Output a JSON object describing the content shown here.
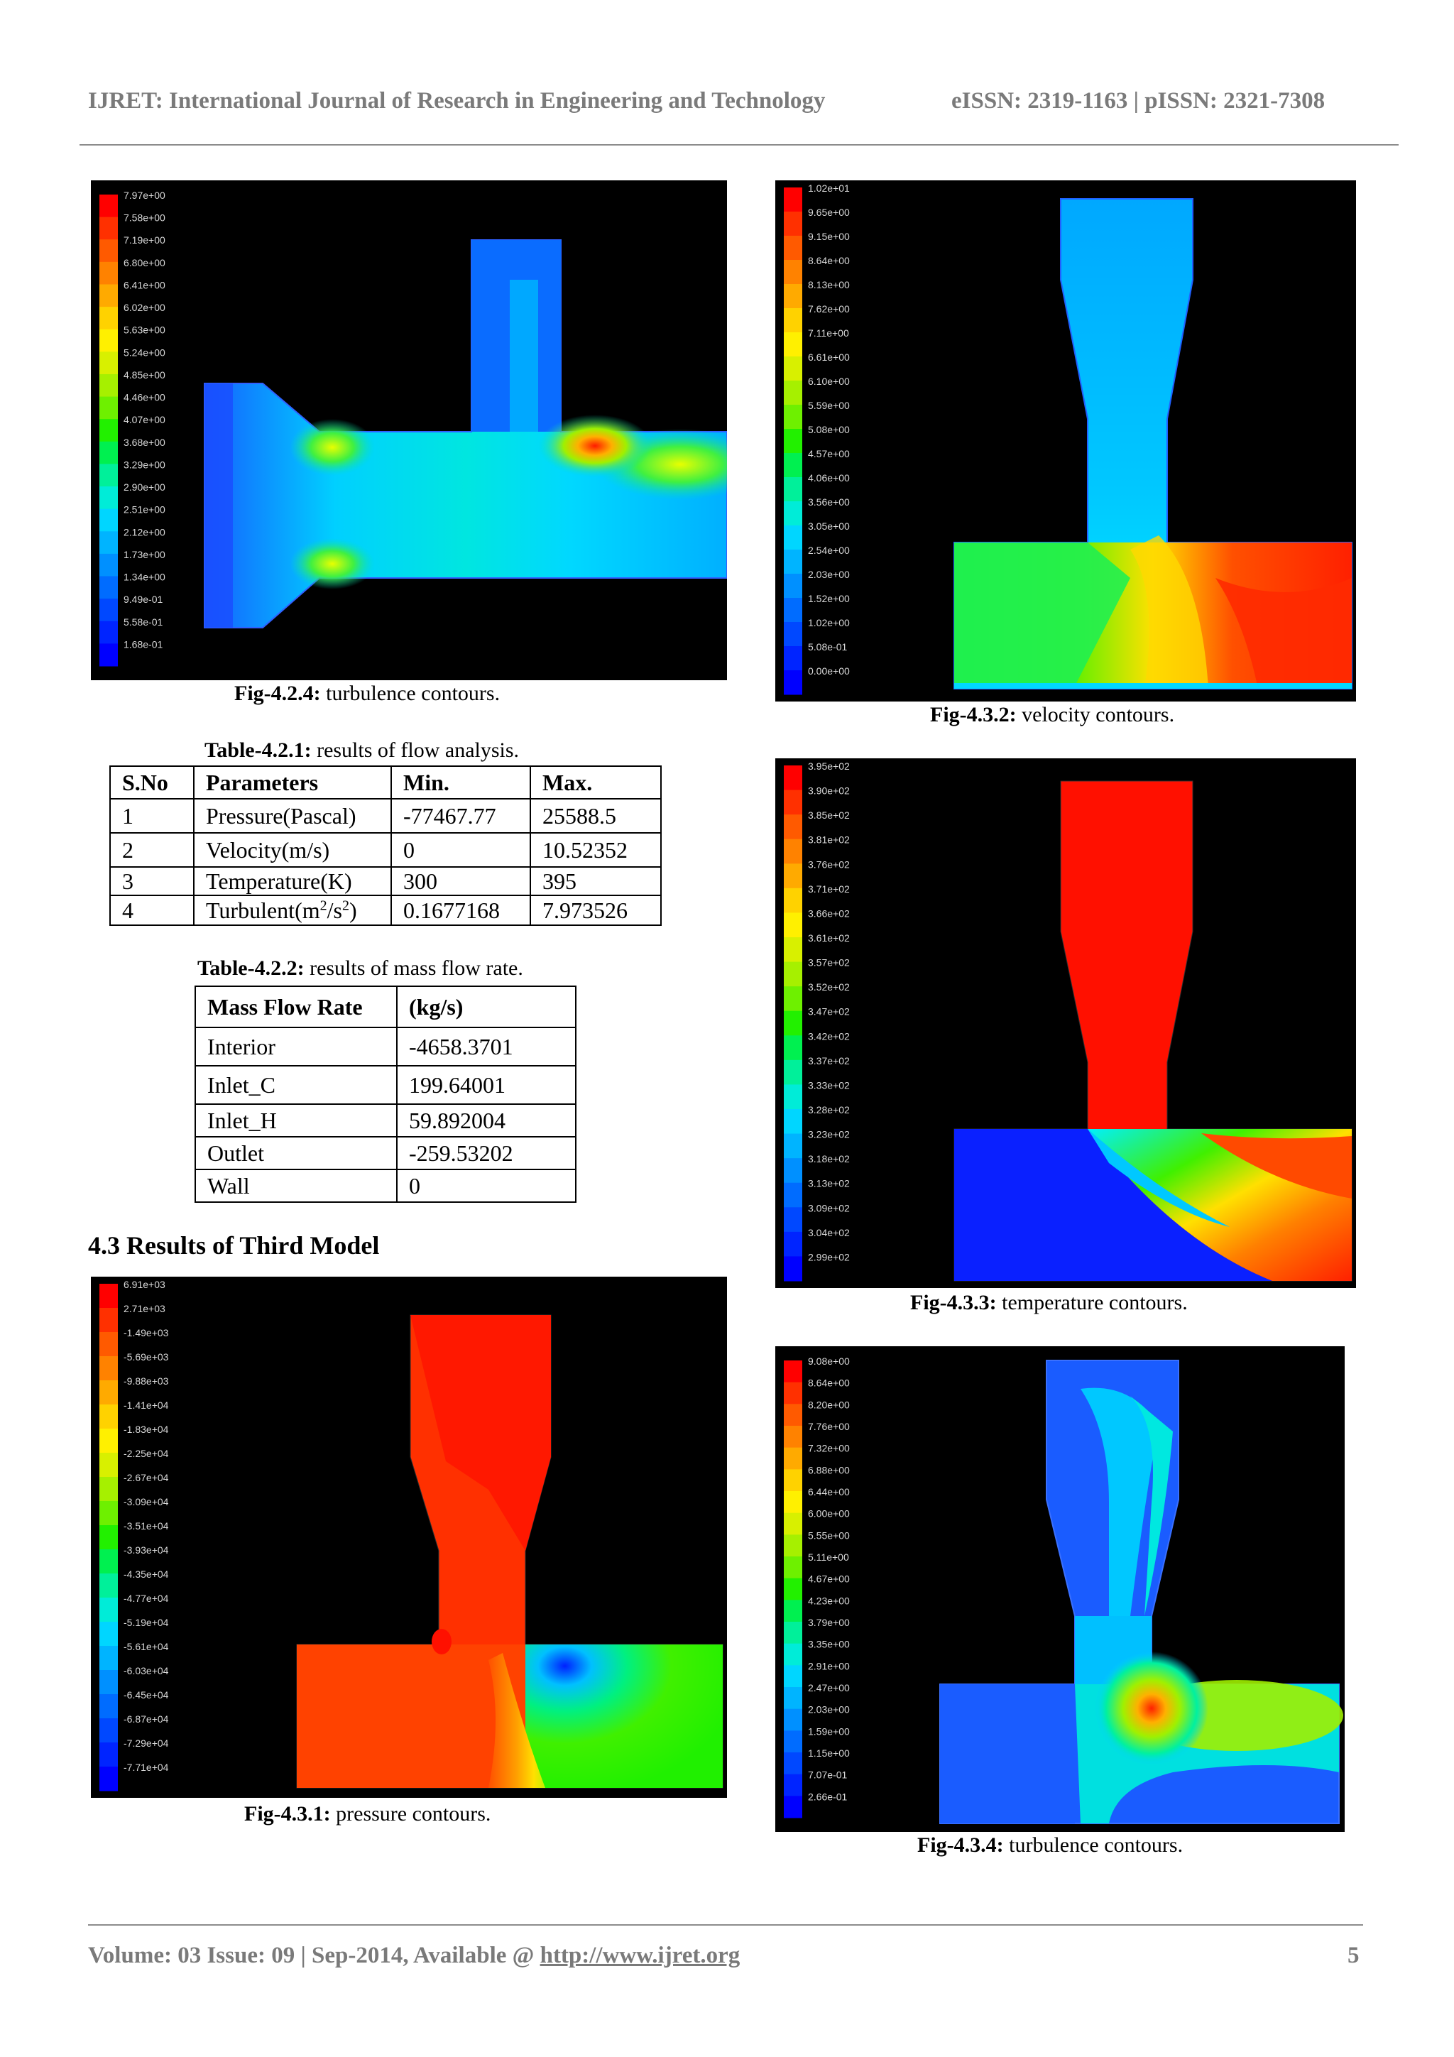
{
  "header": {
    "journal": "IJRET: International Journal of Research in Engineering and Technology",
    "issn": "eISSN: 2319-1163 | pISSN: 2321-7308"
  },
  "figures": {
    "fig_4_2_4": {
      "label": "Fig-4.2.4:",
      "caption": "turbulence contours.",
      "legend": [
        "7.97e+00",
        "7.58e+00",
        "7.19e+00",
        "6.80e+00",
        "6.41e+00",
        "6.02e+00",
        "5.63e+00",
        "5.24e+00",
        "4.85e+00",
        "4.46e+00",
        "4.07e+00",
        "3.68e+00",
        "3.29e+00",
        "2.90e+00",
        "2.51e+00",
        "2.12e+00",
        "1.73e+00",
        "1.34e+00",
        "9.49e-01",
        "5.58e-01",
        "1.68e-01"
      ]
    },
    "fig_4_3_2": {
      "label": "Fig-4.3.2:",
      "caption": "velocity contours.",
      "legend": [
        "1.02e+01",
        "9.65e+00",
        "9.15e+00",
        "8.64e+00",
        "8.13e+00",
        "7.62e+00",
        "7.11e+00",
        "6.61e+00",
        "6.10e+00",
        "5.59e+00",
        "5.08e+00",
        "4.57e+00",
        "4.06e+00",
        "3.56e+00",
        "3.05e+00",
        "2.54e+00",
        "2.03e+00",
        "1.52e+00",
        "1.02e+00",
        "5.08e-01",
        "0.00e+00"
      ]
    },
    "fig_4_3_3": {
      "label": "Fig-4.3.3:",
      "caption": "temperature contours.",
      "legend": [
        "3.95e+02",
        "3.90e+02",
        "3.85e+02",
        "3.81e+02",
        "3.76e+02",
        "3.71e+02",
        "3.66e+02",
        "3.61e+02",
        "3.57e+02",
        "3.52e+02",
        "3.47e+02",
        "3.42e+02",
        "3.37e+02",
        "3.33e+02",
        "3.28e+02",
        "3.23e+02",
        "3.18e+02",
        "3.13e+02",
        "3.09e+02",
        "3.04e+02",
        "2.99e+02"
      ]
    },
    "fig_4_3_1": {
      "label": "Fig-4.3.1:",
      "caption": "pressure contours.",
      "legend": [
        "6.91e+03",
        "2.71e+03",
        "-1.49e+03",
        "-5.69e+03",
        "-9.88e+03",
        "-1.41e+04",
        "-1.83e+04",
        "-2.25e+04",
        "-2.67e+04",
        "-3.09e+04",
        "-3.51e+04",
        "-3.93e+04",
        "-4.35e+04",
        "-4.77e+04",
        "-5.19e+04",
        "-5.61e+04",
        "-6.03e+04",
        "-6.45e+04",
        "-6.87e+04",
        "-7.29e+04",
        "-7.71e+04"
      ]
    },
    "fig_4_3_4": {
      "label": "Fig-4.3.4:",
      "caption": "turbulence contours.",
      "legend": [
        "9.08e+00",
        "8.64e+00",
        "8.20e+00",
        "7.76e+00",
        "7.32e+00",
        "6.88e+00",
        "6.44e+00",
        "6.00e+00",
        "5.55e+00",
        "5.11e+00",
        "4.67e+00",
        "4.23e+00",
        "3.79e+00",
        "3.35e+00",
        "2.91e+00",
        "2.47e+00",
        "2.03e+00",
        "1.59e+00",
        "1.15e+00",
        "7.07e-01",
        "2.66e-01"
      ]
    }
  },
  "table_4_2_1": {
    "label": "Table-4.2.1:",
    "caption": "results of flow analysis.",
    "headers": [
      "S.No",
      "Parameters",
      "Min.",
      "Max."
    ],
    "rows": [
      [
        "1",
        "Pressure(Pascal)",
        "-77467.77",
        "25588.5"
      ],
      [
        "2",
        "Velocity(m/s)",
        "0",
        "10.52352"
      ],
      [
        "3",
        "Temperature(K)",
        "300",
        "395"
      ],
      [
        "4",
        "Turbulent(m2/s2)",
        "0.1677168",
        "7.973526"
      ]
    ]
  },
  "table_4_2_2": {
    "label": "Table-4.2.2:",
    "caption": "results of mass flow rate.",
    "headers": [
      "Mass Flow Rate",
      "(kg/s)"
    ],
    "rows": [
      [
        "Interior",
        "-4658.3701"
      ],
      [
        "Inlet_C",
        "199.64001"
      ],
      [
        "Inlet_H",
        "59.892004"
      ],
      [
        "Outlet",
        "-259.53202"
      ],
      [
        "Wall",
        "0"
      ]
    ]
  },
  "section": {
    "title": "4.3 Results of Third Model"
  },
  "footer": {
    "volume": "Volume: 03 Issue: 09 | Sep-2014, Available @ ",
    "link": "http://www.ijret.org",
    "page": "5"
  },
  "colors": {
    "legend_scale": [
      "#ff0000",
      "#ff3000",
      "#ff5a00",
      "#ff8200",
      "#ffaa00",
      "#ffd200",
      "#fff000",
      "#d8f000",
      "#a6f000",
      "#6ef000",
      "#22f000",
      "#00f050",
      "#00f09a",
      "#00ecd8",
      "#00d6ff",
      "#00b4ff",
      "#0090ff",
      "#006cff",
      "#0048ff",
      "#0024ff",
      "#0000ff"
    ]
  }
}
